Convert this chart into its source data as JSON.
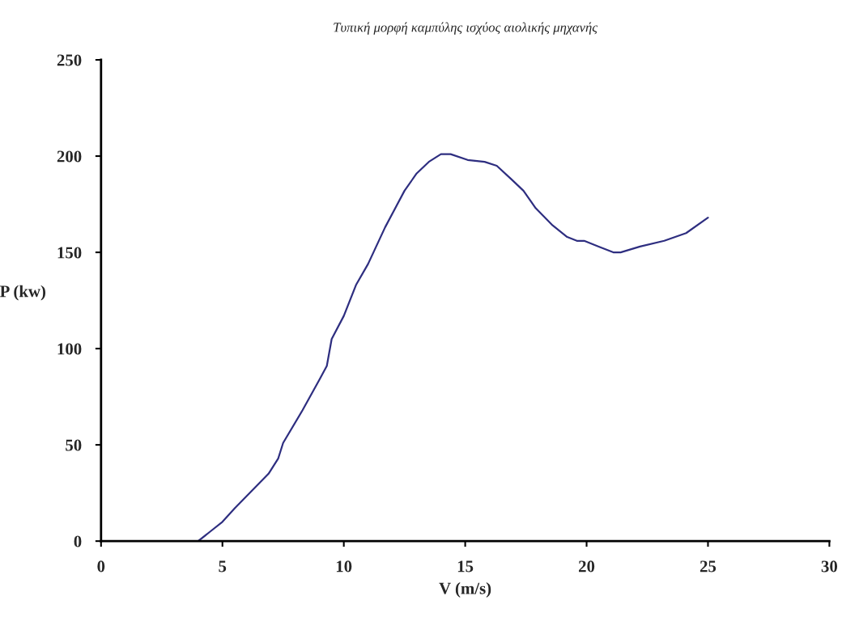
{
  "chart_data": {
    "type": "line",
    "title": "Τυπική μορφή καμπύλης ισχύος αιολικής μηχανής",
    "xlabel": "V (m/s)",
    "ylabel": "P (kw)",
    "x": [
      4.0,
      4.5,
      5.0,
      5.5,
      6.2,
      6.9,
      7.3,
      7.5,
      8.3,
      9.0,
      9.3,
      9.5,
      10.0,
      10.5,
      11.0,
      11.7,
      12.5,
      13.0,
      13.5,
      14.0,
      14.4,
      15.1,
      15.8,
      16.3,
      16.9,
      17.4,
      17.9,
      18.6,
      19.2,
      19.6,
      19.9,
      20.5,
      21.1,
      21.4,
      22.2,
      23.2,
      24.1,
      25.0
    ],
    "series": [
      {
        "color": "#2e2e80",
        "values": [
          0,
          5,
          10,
          17,
          26,
          35,
          43,
          51,
          68,
          84,
          91,
          105,
          117,
          133,
          144,
          163,
          182,
          191,
          197,
          201,
          201,
          198,
          197,
          195,
          188,
          182,
          173,
          164,
          158,
          156,
          156,
          153,
          150,
          150,
          153,
          156,
          160,
          168
        ]
      }
    ],
    "xlim": [
      0,
      30
    ],
    "xticks": [
      0,
      5,
      10,
      15,
      20,
      25,
      30
    ],
    "ylim": [
      0,
      250
    ],
    "yticks": [
      0,
      50,
      100,
      150,
      200,
      250
    ],
    "grid": false,
    "marker": "none",
    "line_style": "solid"
  }
}
